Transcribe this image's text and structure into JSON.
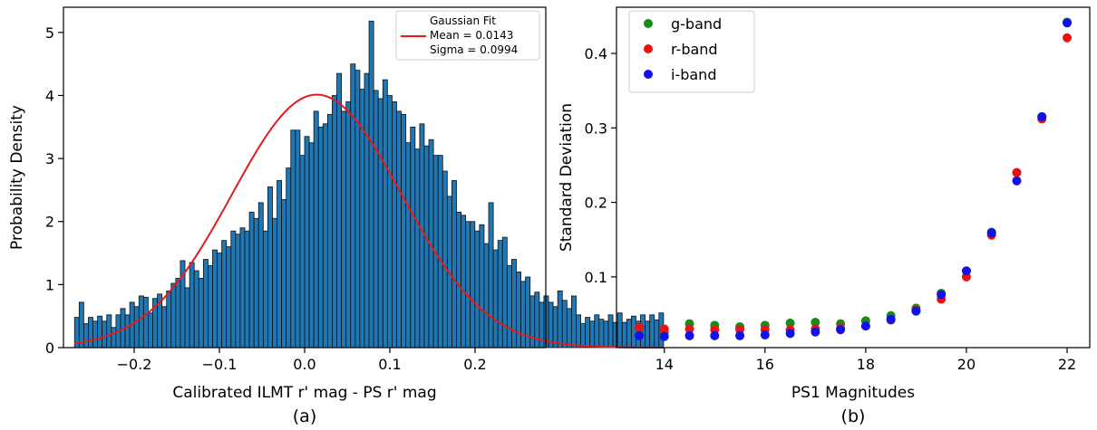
{
  "chart_data": [
    {
      "type": "bar",
      "panel_label": "(a)",
      "xlabel": "Calibrated ILMT r' mag - PS r' mag",
      "ylabel": "Probability Density",
      "xlim": [
        -0.283,
        0.283
      ],
      "ylim": [
        0,
        5.4
      ],
      "xticks": [
        -0.2,
        -0.1,
        0.0,
        0.1,
        0.2
      ],
      "xtick_labels": [
        "−0.2",
        "−0.1",
        "0.0",
        "0.1",
        "0.2"
      ],
      "yticks": [
        0,
        1,
        2,
        3,
        4,
        5
      ],
      "ytick_labels": [
        "0",
        "1",
        "2",
        "3",
        "4",
        "5"
      ],
      "bar_color": "#1f77b4",
      "bin_start": -0.27,
      "bin_width": 0.0054,
      "values": [
        0.48,
        0.72,
        0.38,
        0.48,
        0.42,
        0.5,
        0.42,
        0.52,
        0.32,
        0.52,
        0.62,
        0.52,
        0.72,
        0.65,
        0.82,
        0.8,
        0.55,
        0.78,
        0.85,
        0.65,
        0.9,
        1.02,
        1.1,
        1.38,
        0.95,
        1.35,
        1.22,
        1.1,
        1.4,
        1.3,
        1.55,
        1.5,
        1.7,
        1.6,
        1.85,
        1.8,
        1.9,
        1.85,
        2.15,
        2.05,
        2.3,
        1.85,
        2.55,
        2.05,
        2.65,
        2.35,
        2.85,
        3.45,
        3.45,
        3.05,
        3.35,
        3.25,
        3.75,
        3.5,
        3.55,
        3.7,
        4.0,
        4.35,
        3.75,
        3.9,
        4.5,
        4.4,
        4.1,
        4.35,
        5.18,
        4.08,
        3.95,
        4.25,
        4.0,
        3.9,
        3.75,
        3.7,
        3.25,
        3.5,
        3.15,
        3.55,
        3.2,
        3.3,
        3.05,
        3.05,
        2.8,
        2.4,
        2.65,
        2.15,
        2.1,
        2.0,
        2.0,
        1.85,
        1.95,
        1.65,
        2.3,
        1.55,
        1.7,
        1.75,
        1.3,
        1.4,
        1.2,
        1.05,
        1.12,
        0.82,
        0.88,
        0.72,
        0.82,
        0.72,
        0.65,
        0.9,
        0.75,
        0.62,
        0.82,
        0.52,
        0.38,
        0.48,
        0.42,
        0.52,
        0.45,
        0.42,
        0.52,
        0.4,
        0.55,
        0.4,
        0.45,
        0.5,
        0.42,
        0.52,
        0.42,
        0.52,
        0.44,
        0.55
      ],
      "fit": {
        "name": "Gaussian Fit",
        "mean": 0.0143,
        "sigma": 0.0994,
        "color": "#e41a1c"
      },
      "legend": {
        "title": "Gaussian Fit",
        "lines": [
          "Mean = 0.0143",
          "Sigma = 0.0994"
        ],
        "placement": "upper-right"
      }
    },
    {
      "type": "scatter",
      "panel_label": "(b)",
      "xlabel": "PS1 Magnitudes",
      "ylabel": "Standard Deviation",
      "xlim": [
        13.05,
        22.45
      ],
      "ylim": [
        0.005,
        0.462
      ],
      "xticks": [
        14,
        16,
        18,
        20,
        22
      ],
      "xtick_labels": [
        "14",
        "16",
        "18",
        "20",
        "22"
      ],
      "yticks": [
        0.1,
        0.2,
        0.3,
        0.4
      ],
      "ytick_labels": [
        "0.1",
        "0.2",
        "0.3",
        "0.4"
      ],
      "x": [
        13.5,
        14,
        14.5,
        15,
        15.5,
        16,
        16.5,
        17,
        17.5,
        18,
        18.5,
        19,
        19.5,
        20,
        20.5,
        21,
        21.5,
        22
      ],
      "legend_placement": "upper-left",
      "series": [
        {
          "name": "g-band",
          "color": "#1a8a1a",
          "values": [
            0.025,
            0.025,
            0.037,
            0.035,
            0.033,
            0.035,
            0.038,
            0.039,
            0.037,
            0.041,
            0.048,
            0.058,
            0.078,
            0.108,
            0.16,
            0.24,
            0.315,
            0.442
          ]
        },
        {
          "name": "r-band",
          "color": "#ee1111",
          "values": [
            0.032,
            0.03,
            0.03,
            0.029,
            0.029,
            0.029,
            0.029,
            0.03,
            0.031,
            0.034,
            0.042,
            0.055,
            0.07,
            0.1,
            0.156,
            0.24,
            0.312,
            0.421
          ]
        },
        {
          "name": "i-band",
          "color": "#1111ee",
          "values": [
            0.021,
            0.02,
            0.021,
            0.021,
            0.021,
            0.022,
            0.024,
            0.026,
            0.029,
            0.034,
            0.043,
            0.054,
            0.076,
            0.108,
            0.159,
            0.229,
            0.315,
            0.441
          ]
        }
      ]
    }
  ]
}
